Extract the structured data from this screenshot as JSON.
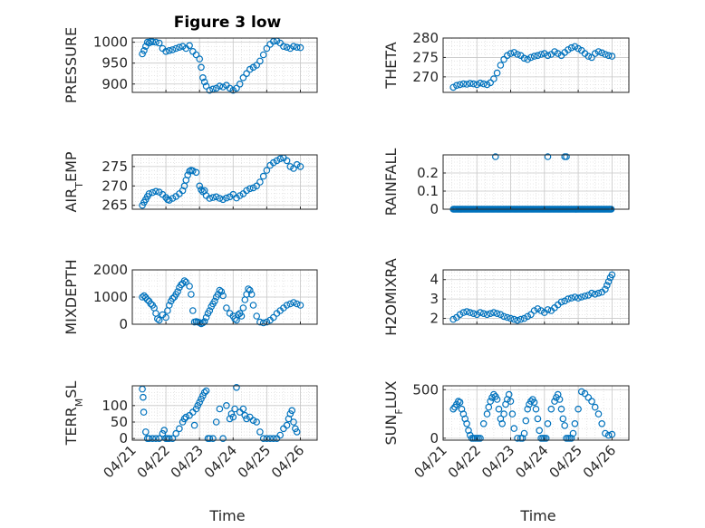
{
  "figure": {
    "title": "Figure 3 low",
    "xlabel": "Time",
    "marker_color": "#0072BD"
  },
  "chart_data": [
    {
      "type": "scatter",
      "ylabel": "PRESSURE",
      "ylabel_parts": [
        {
          "t": "PRESSURE"
        }
      ],
      "ylim": [
        880,
        1010
      ],
      "yticks": [
        900,
        950,
        1000
      ],
      "x": [
        0.3,
        0.35,
        0.4,
        0.45,
        0.5,
        0.55,
        0.6,
        0.7,
        0.8,
        0.9,
        1.0,
        1.1,
        1.2,
        1.3,
        1.4,
        1.5,
        1.6,
        1.7,
        1.8,
        1.9,
        2.0,
        2.05,
        2.1,
        2.15,
        2.2,
        2.3,
        2.4,
        2.5,
        2.6,
        2.7,
        2.8,
        2.9,
        3.0,
        3.1,
        3.2,
        3.3,
        3.4,
        3.5,
        3.6,
        3.7,
        3.8,
        3.9,
        4.0,
        4.1,
        4.2,
        4.3,
        4.4,
        4.5,
        4.6,
        4.7,
        4.8,
        4.9,
        5.0
      ],
      "y": [
        972,
        980,
        990,
        1000,
        998,
        1002,
        1001,
        1000,
        998,
        985,
        978,
        980,
        982,
        985,
        988,
        990,
        985,
        992,
        978,
        970,
        960,
        940,
        915,
        905,
        895,
        885,
        888,
        890,
        895,
        893,
        897,
        890,
        885,
        890,
        900,
        915,
        925,
        935,
        940,
        945,
        955,
        970,
        985,
        995,
        1002,
        1003,
        998,
        990,
        988,
        985,
        990,
        988,
        987
      ]
    },
    {
      "type": "scatter",
      "ylabel": "THETA",
      "ylabel_parts": [
        {
          "t": "THETA"
        }
      ],
      "ylim": [
        266,
        280
      ],
      "yticks": [
        270,
        275,
        280
      ],
      "x": [
        0.3,
        0.4,
        0.5,
        0.6,
        0.7,
        0.8,
        0.9,
        1.0,
        1.1,
        1.2,
        1.3,
        1.4,
        1.5,
        1.6,
        1.7,
        1.8,
        1.9,
        2.0,
        2.1,
        2.2,
        2.3,
        2.4,
        2.5,
        2.6,
        2.7,
        2.8,
        2.9,
        3.0,
        3.1,
        3.2,
        3.3,
        3.4,
        3.5,
        3.6,
        3.7,
        3.8,
        3.9,
        4.0,
        4.1,
        4.2,
        4.3,
        4.4,
        4.5,
        4.6,
        4.7,
        4.8,
        4.9,
        5.0
      ],
      "y": [
        267.3,
        267.8,
        268.0,
        268.2,
        268.1,
        268.3,
        268.2,
        268.0,
        268.4,
        268.2,
        268.0,
        268.5,
        269.5,
        271.0,
        273.0,
        274.5,
        275.5,
        276.0,
        276.3,
        275.8,
        275.5,
        274.8,
        274.5,
        275.0,
        275.3,
        275.5,
        275.8,
        276.0,
        275.5,
        275.8,
        276.5,
        276.0,
        275.5,
        276.3,
        277.0,
        277.5,
        277.8,
        277.3,
        276.8,
        276.0,
        275.3,
        275.0,
        276.0,
        276.5,
        276.2,
        275.8,
        275.5,
        275.3
      ]
    },
    {
      "type": "scatter",
      "ylabel": "AIR_TEMP",
      "ylabel_parts": [
        {
          "t": "AIR"
        },
        {
          "t": "T",
          "sub": true
        },
        {
          "t": "EMP"
        }
      ],
      "ylim": [
        264,
        278
      ],
      "yticks": [
        265,
        270,
        275
      ],
      "x": [
        0.3,
        0.35,
        0.4,
        0.45,
        0.5,
        0.6,
        0.7,
        0.8,
        0.9,
        1.0,
        1.05,
        1.1,
        1.2,
        1.3,
        1.4,
        1.5,
        1.55,
        1.6,
        1.65,
        1.7,
        1.75,
        1.8,
        1.9,
        2.0,
        2.05,
        2.1,
        2.15,
        2.2,
        2.3,
        2.4,
        2.5,
        2.6,
        2.7,
        2.8,
        2.9,
        3.0,
        3.1,
        3.2,
        3.3,
        3.4,
        3.5,
        3.6,
        3.7,
        3.8,
        3.9,
        4.0,
        4.1,
        4.2,
        4.3,
        4.4,
        4.5,
        4.6,
        4.7,
        4.8,
        4.9,
        5.0
      ],
      "y": [
        265.0,
        265.8,
        266.5,
        267.3,
        268.0,
        268.3,
        268.6,
        268.4,
        267.8,
        267.0,
        266.5,
        266.3,
        266.8,
        267.3,
        268.0,
        268.8,
        270.0,
        271.5,
        272.8,
        273.8,
        274.0,
        273.9,
        273.5,
        270.0,
        269.0,
        268.5,
        268.8,
        267.5,
        266.8,
        267.0,
        267.2,
        266.8,
        266.5,
        266.9,
        267.2,
        267.8,
        266.9,
        267.5,
        268.0,
        268.8,
        269.3,
        269.5,
        270.0,
        271.0,
        272.5,
        274.0,
        275.3,
        276.0,
        276.5,
        277.0,
        277.2,
        276.5,
        275.0,
        274.5,
        275.5,
        275.0
      ]
    },
    {
      "type": "scatter",
      "ylabel": "RAINFALL",
      "ylabel_parts": [
        {
          "t": "RAINFALL"
        }
      ],
      "ylim": [
        0,
        0.3
      ],
      "yticks": [
        0,
        0.1,
        0.2
      ],
      "ytick_labels": [
        "0",
        "0.1",
        "0.2"
      ],
      "zero_range": [
        0.3,
        5.0
      ],
      "x": [
        1.55,
        3.1,
        3.6,
        3.65
      ],
      "y": [
        0.29,
        0.29,
        0.29,
        0.29
      ]
    },
    {
      "type": "scatter",
      "ylabel": "MIXDEPTH",
      "ylabel_parts": [
        {
          "t": "MIXDEPTH"
        }
      ],
      "ylim": [
        0,
        2000
      ],
      "yticks": [
        0,
        1000,
        2000
      ],
      "x": [
        0.3,
        0.35,
        0.4,
        0.45,
        0.5,
        0.55,
        0.6,
        0.65,
        0.7,
        0.75,
        0.8,
        0.9,
        1.0,
        1.05,
        1.1,
        1.15,
        1.2,
        1.25,
        1.3,
        1.35,
        1.4,
        1.45,
        1.5,
        1.55,
        1.6,
        1.7,
        1.75,
        1.8,
        1.85,
        1.9,
        1.95,
        2.0,
        2.05,
        2.1,
        2.15,
        2.2,
        2.25,
        2.3,
        2.35,
        2.4,
        2.45,
        2.5,
        2.55,
        2.6,
        2.65,
        2.7,
        2.8,
        2.9,
        3.0,
        3.05,
        3.1,
        3.15,
        3.2,
        3.25,
        3.3,
        3.35,
        3.4,
        3.45,
        3.5,
        3.55,
        3.6,
        3.7,
        3.8,
        3.9,
        4.0,
        4.1,
        4.2,
        4.3,
        4.4,
        4.5,
        4.6,
        4.7,
        4.8,
        4.9,
        5.0
      ],
      "y": [
        1000,
        1050,
        980,
        900,
        850,
        750,
        700,
        600,
        400,
        200,
        150,
        350,
        250,
        500,
        700,
        850,
        950,
        1000,
        1100,
        1200,
        1350,
        1450,
        1500,
        1600,
        1550,
        1400,
        1100,
        500,
        80,
        100,
        80,
        60,
        20,
        50,
        100,
        250,
        400,
        500,
        650,
        750,
        850,
        1000,
        1100,
        1250,
        1200,
        1050,
        600,
        400,
        300,
        200,
        150,
        350,
        400,
        300,
        600,
        900,
        1100,
        1300,
        1250,
        1100,
        700,
        300,
        80,
        50,
        80,
        150,
        250,
        400,
        500,
        600,
        700,
        750,
        800,
        750,
        700
      ]
    },
    {
      "type": "scatter",
      "ylabel": "H2OMIXRA",
      "ylabel_parts": [
        {
          "t": "H2OMIXRA"
        }
      ],
      "ylim": [
        1.7,
        4.5
      ],
      "yticks": [
        2,
        3,
        4
      ],
      "x": [
        0.3,
        0.4,
        0.5,
        0.6,
        0.7,
        0.8,
        0.9,
        1.0,
        1.1,
        1.2,
        1.3,
        1.4,
        1.5,
        1.6,
        1.7,
        1.8,
        1.9,
        2.0,
        2.1,
        2.2,
        2.3,
        2.4,
        2.5,
        2.6,
        2.7,
        2.8,
        2.9,
        3.0,
        3.1,
        3.2,
        3.3,
        3.4,
        3.5,
        3.6,
        3.7,
        3.8,
        3.9,
        4.0,
        4.1,
        4.2,
        4.3,
        4.4,
        4.5,
        4.6,
        4.7,
        4.8,
        4.85,
        4.9,
        4.95,
        5.0
      ],
      "y": [
        1.95,
        2.05,
        2.2,
        2.3,
        2.35,
        2.3,
        2.25,
        2.2,
        2.3,
        2.25,
        2.2,
        2.25,
        2.3,
        2.25,
        2.2,
        2.1,
        2.05,
        2.0,
        1.95,
        1.9,
        1.95,
        2.0,
        2.1,
        2.2,
        2.4,
        2.5,
        2.4,
        2.3,
        2.45,
        2.4,
        2.55,
        2.7,
        2.85,
        2.9,
        3.0,
        3.05,
        3.1,
        3.05,
        3.1,
        3.15,
        3.2,
        3.3,
        3.25,
        3.3,
        3.35,
        3.5,
        3.7,
        3.9,
        4.1,
        4.25
      ]
    },
    {
      "type": "scatter",
      "ylabel": "TERR_MSL",
      "ylabel_parts": [
        {
          "t": "TERR"
        },
        {
          "t": "M",
          "sub": true
        },
        {
          "t": "SL"
        }
      ],
      "ylim": [
        -5,
        160
      ],
      "yticks": [
        0,
        50,
        100
      ],
      "x": [
        0.3,
        0.32,
        0.34,
        0.4,
        0.45,
        0.5,
        0.6,
        0.7,
        0.8,
        0.9,
        0.95,
        1.0,
        1.05,
        1.1,
        1.2,
        1.3,
        1.4,
        1.5,
        1.55,
        1.6,
        1.7,
        1.8,
        1.85,
        1.9,
        1.95,
        2.0,
        2.05,
        2.1,
        2.15,
        2.2,
        2.25,
        2.3,
        2.4,
        2.5,
        2.6,
        2.7,
        2.8,
        2.9,
        2.95,
        3.0,
        3.05,
        3.1,
        3.2,
        3.3,
        3.35,
        3.4,
        3.5,
        3.6,
        3.7,
        3.8,
        3.9,
        4.0,
        4.1,
        4.2,
        4.3,
        4.4,
        4.5,
        4.6,
        4.65,
        4.7,
        4.75,
        4.8,
        4.85,
        4.9
      ],
      "y": [
        150,
        125,
        80,
        20,
        0,
        0,
        0,
        0,
        0,
        15,
        25,
        0,
        0,
        0,
        0,
        15,
        30,
        50,
        60,
        65,
        70,
        80,
        40,
        90,
        100,
        110,
        120,
        130,
        140,
        145,
        0,
        0,
        0,
        50,
        90,
        0,
        100,
        60,
        75,
        65,
        90,
        155,
        80,
        90,
        70,
        60,
        65,
        55,
        50,
        20,
        0,
        0,
        0,
        0,
        0,
        10,
        30,
        40,
        60,
        75,
        85,
        50,
        30,
        20
      ]
    },
    {
      "type": "scatter",
      "ylabel": "SUN_FLUX",
      "ylabel_parts": [
        {
          "t": "SUN"
        },
        {
          "t": "F",
          "sub": true
        },
        {
          "t": "LUX"
        }
      ],
      "ylim": [
        -20,
        540
      ],
      "yticks": [
        0,
        500
      ],
      "x": [
        0.3,
        0.35,
        0.4,
        0.45,
        0.5,
        0.55,
        0.6,
        0.65,
        0.7,
        0.75,
        0.8,
        0.85,
        0.9,
        0.95,
        1.0,
        1.05,
        1.1,
        1.2,
        1.3,
        1.35,
        1.4,
        1.45,
        1.5,
        1.55,
        1.6,
        1.65,
        1.7,
        1.75,
        1.8,
        1.85,
        1.9,
        1.95,
        2.0,
        2.05,
        2.1,
        2.2,
        2.3,
        2.35,
        2.4,
        2.45,
        2.5,
        2.55,
        2.6,
        2.65,
        2.7,
        2.75,
        2.8,
        2.85,
        2.9,
        2.95,
        3.0,
        3.05,
        3.1,
        3.2,
        3.3,
        3.35,
        3.4,
        3.45,
        3.5,
        3.55,
        3.6,
        3.65,
        3.7,
        3.75,
        3.8,
        3.85,
        3.9,
        4.0,
        4.1,
        4.2,
        4.3,
        4.4,
        4.5,
        4.6,
        4.7,
        4.8,
        4.9,
        5.0
      ],
      "y": [
        300,
        320,
        350,
        380,
        370,
        300,
        250,
        200,
        150,
        80,
        30,
        0,
        0,
        0,
        0,
        0,
        0,
        150,
        250,
        320,
        380,
        420,
        450,
        430,
        400,
        300,
        200,
        150,
        250,
        350,
        400,
        450,
        380,
        250,
        100,
        0,
        0,
        0,
        50,
        180,
        300,
        350,
        380,
        400,
        370,
        300,
        200,
        80,
        0,
        0,
        0,
        0,
        150,
        300,
        380,
        420,
        450,
        400,
        300,
        200,
        130,
        0,
        0,
        0,
        0,
        50,
        150,
        300,
        480,
        460,
        420,
        380,
        320,
        250,
        150,
        50,
        30,
        40
      ]
    }
  ],
  "xaxis": {
    "xlim": [
      0,
      5.5
    ],
    "ticks": [
      0,
      1,
      2,
      3,
      4,
      5
    ],
    "tick_labels": [
      "04/21",
      "04/22",
      "04/23",
      "04/24",
      "04/25",
      "04/26"
    ]
  }
}
